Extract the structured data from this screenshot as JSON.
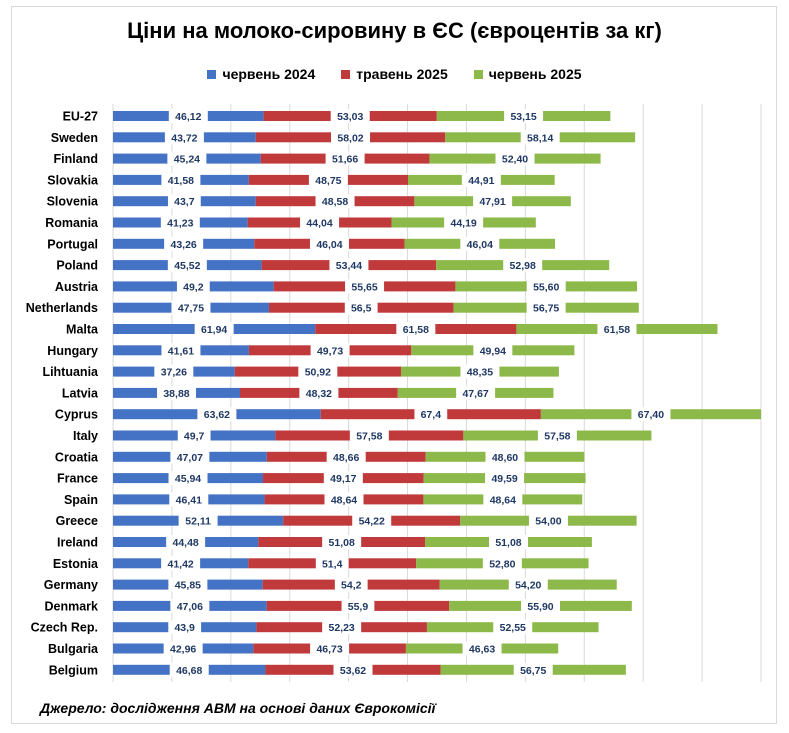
{
  "chart_data": {
    "type": "bar",
    "orientation": "horizontal",
    "stacked": true,
    "title": "Ціни на молоко-сировину в ЄС (євроцентів за кг)",
    "source": "Джерело: дослідження АВМ на основі даних Єврокомісії",
    "legend_position": "top",
    "grid": true,
    "categories": [
      "EU-27",
      "Sweden",
      "Finland",
      "Slovakia",
      "Slovenia",
      "Romania",
      "Portugal",
      "Poland",
      "Austria",
      "Netherlands",
      "Malta",
      "Hungary",
      "Lihtuania",
      "Latvia",
      "Cyprus",
      "Italy",
      "Croatia",
      "France",
      "Spain",
      "Greece",
      "Ireland",
      "Estonia",
      "Germany",
      "Denmark",
      "Czech Rep.",
      "Bulgaria",
      "Belgium"
    ],
    "series": [
      {
        "name": "червень 2024",
        "color": "#4472c4",
        "values": [
          46.12,
          43.72,
          45.24,
          41.58,
          43.7,
          41.23,
          43.26,
          45.52,
          49.2,
          47.75,
          61.94,
          41.61,
          37.26,
          38.88,
          63.62,
          49.7,
          47.07,
          45.94,
          46.41,
          52.11,
          44.48,
          41.42,
          45.85,
          47.06,
          43.9,
          42.96,
          46.68
        ],
        "labels": [
          "46,12",
          "43,72",
          "45,24",
          "41,58",
          "43,7",
          "41,23",
          "43,26",
          "45,52",
          "49,2",
          "47,75",
          "61,94",
          "41,61",
          "37,26",
          "38,88",
          "63,62",
          "49,7",
          "47,07",
          "45,94",
          "46,41",
          "52,11",
          "44,48",
          "41,42",
          "45,85",
          "47,06",
          "43,9",
          "42,96",
          "46,68"
        ]
      },
      {
        "name": "травень 2025",
        "color": "#c0393b",
        "values": [
          53.03,
          58.02,
          51.66,
          48.75,
          48.58,
          44.04,
          46.04,
          53.44,
          55.65,
          56.5,
          61.58,
          49.73,
          50.92,
          48.32,
          67.4,
          57.58,
          48.66,
          49.17,
          48.64,
          54.22,
          51.08,
          51.4,
          54.2,
          55.9,
          52.23,
          46.73,
          53.62
        ],
        "labels": [
          "53,03",
          "58,02",
          "51,66",
          "48,75",
          "48,58",
          "44,04",
          "46,04",
          "53,44",
          "55,65",
          "56,5",
          "61,58",
          "49,73",
          "50,92",
          "48,32",
          "67,4",
          "57,58",
          "48,66",
          "49,17",
          "48,64",
          "54,22",
          "51,08",
          "51,4",
          "54,2",
          "55,9",
          "52,23",
          "46,73",
          "53,62"
        ]
      },
      {
        "name": "червень 2025",
        "color": "#8db84a",
        "values": [
          53.15,
          58.14,
          52.4,
          44.91,
          47.91,
          44.19,
          46.04,
          52.98,
          55.6,
          56.75,
          61.58,
          49.94,
          48.35,
          47.67,
          67.4,
          57.58,
          48.6,
          49.59,
          48.64,
          54.0,
          51.08,
          52.8,
          54.2,
          55.9,
          52.55,
          46.63,
          56.75
        ],
        "labels": [
          "53,15",
          "58,14",
          "52,40",
          "44,91",
          "47,91",
          "44,19",
          "46,04",
          "52,98",
          "55,60",
          "56,75",
          "61,58",
          "49,94",
          "48,35",
          "47,67",
          "67,40",
          "57,58",
          "48,60",
          "49,59",
          "48,64",
          "54,00",
          "51,08",
          "52,80",
          "54,20",
          "55,90",
          "52,55",
          "46,63",
          "56,75"
        ]
      }
    ]
  }
}
